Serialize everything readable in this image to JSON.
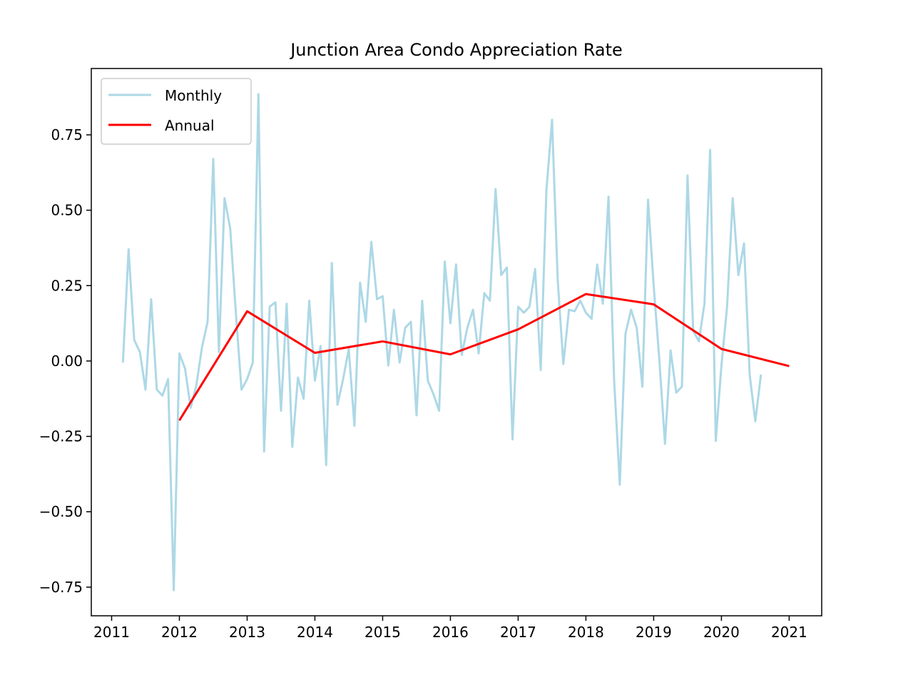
{
  "chart_data": {
    "type": "line",
    "title": "Junction Area Condo Appreciation Rate",
    "xlabel": "",
    "ylabel": "",
    "x_unit": "year",
    "xlim": [
      2010.7,
      2021.48
    ],
    "ylim": [
      -0.845,
      0.97
    ],
    "x_ticks": [
      2011,
      2012,
      2013,
      2014,
      2015,
      2016,
      2017,
      2018,
      2019,
      2020,
      2021
    ],
    "y_ticks": [
      -0.75,
      -0.5,
      -0.25,
      0.0,
      0.25,
      0.5,
      0.75
    ],
    "y_tick_labels": [
      "−0.75",
      "−0.50",
      "−0.25",
      "0.00",
      "0.25",
      "0.50",
      "0.75"
    ],
    "grid": false,
    "legend_position": "upper-left",
    "series": [
      {
        "name": "Monthly",
        "color": "#add8e6",
        "x_start": 2011.1667,
        "x_step_months": 1,
        "values": [
          -0.005,
          0.37,
          0.07,
          0.03,
          -0.095,
          0.205,
          -0.095,
          -0.115,
          -0.06,
          -0.76,
          0.025,
          -0.025,
          -0.155,
          -0.08,
          0.045,
          0.13,
          0.67,
          0.03,
          0.54,
          0.44,
          0.16,
          -0.095,
          -0.06,
          -0.005,
          0.885,
          -0.3,
          0.18,
          0.195,
          -0.165,
          0.19,
          -0.285,
          -0.055,
          -0.125,
          0.2,
          -0.065,
          0.05,
          -0.345,
          0.325,
          -0.145,
          -0.06,
          0.04,
          -0.215,
          0.26,
          0.13,
          0.395,
          0.205,
          0.215,
          -0.015,
          0.17,
          -0.005,
          0.11,
          0.13,
          -0.18,
          0.2,
          -0.065,
          -0.11,
          -0.165,
          0.33,
          0.125,
          0.32,
          0.02,
          0.11,
          0.17,
          0.025,
          0.225,
          0.2,
          0.57,
          0.285,
          0.31,
          -0.26,
          0.18,
          0.16,
          0.18,
          0.305,
          -0.03,
          0.565,
          0.8,
          0.27,
          -0.01,
          0.17,
          0.165,
          0.2,
          0.16,
          0.14,
          0.32,
          0.19,
          0.545,
          -0.065,
          -0.41,
          0.09,
          0.17,
          0.11,
          -0.085,
          0.535,
          0.25,
          0.005,
          -0.275,
          0.035,
          -0.105,
          -0.085,
          0.615,
          0.1,
          0.065,
          0.19,
          0.7,
          -0.265,
          -0.015,
          0.18,
          0.54,
          0.285,
          0.39,
          -0.045,
          -0.2,
          -0.045
        ]
      },
      {
        "name": "Annual",
        "color": "#ff0000",
        "x": [
          2012,
          2013,
          2014,
          2015,
          2016,
          2017,
          2018,
          2019,
          2020,
          2021
        ],
        "values": [
          -0.197,
          0.165,
          0.027,
          0.065,
          0.022,
          0.105,
          0.222,
          0.188,
          0.04,
          -0.017
        ]
      }
    ]
  }
}
